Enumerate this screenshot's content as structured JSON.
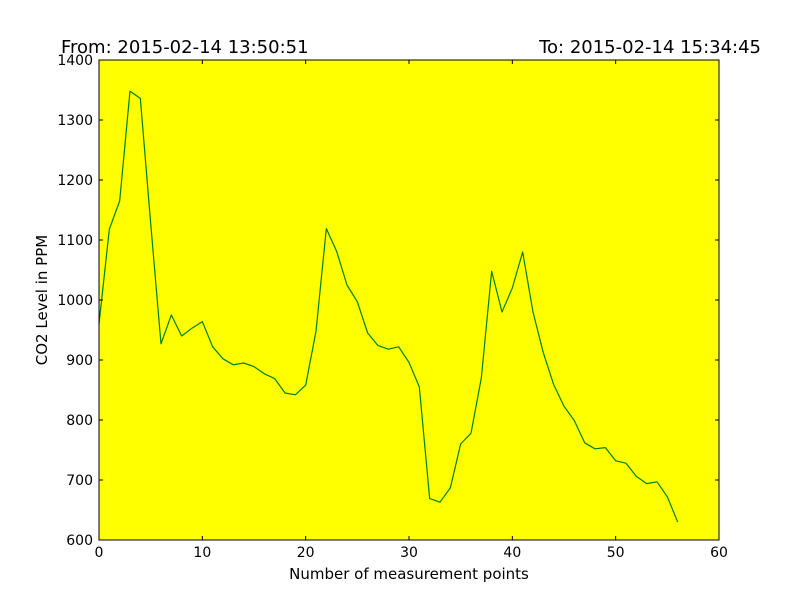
{
  "header": {
    "from_text": "From: 2015-02-14 13:50:51",
    "to_text": "To: 2015-02-14 15:34:45"
  },
  "colors": {
    "plot_background": "#ffff00",
    "line": "#008000"
  },
  "chart_data": {
    "type": "line",
    "title": "",
    "xlabel": "Number of measurement points",
    "ylabel": "CO2 Level in PPM",
    "xlim": [
      0,
      60
    ],
    "ylim": [
      600,
      1400
    ],
    "xticks": [
      0,
      10,
      20,
      30,
      40,
      50,
      60
    ],
    "yticks": [
      600,
      700,
      800,
      900,
      1000,
      1100,
      1200,
      1300,
      1400
    ],
    "grid": false,
    "x": [
      0,
      1,
      2,
      3,
      4,
      5,
      6,
      7,
      8,
      9,
      10,
      11,
      12,
      13,
      14,
      15,
      16,
      17,
      18,
      19,
      20,
      21,
      22,
      23,
      24,
      25,
      26,
      27,
      28,
      29,
      30,
      31,
      32,
      33,
      34,
      35,
      36,
      37,
      38,
      39,
      40,
      41,
      42,
      43,
      44,
      45,
      46,
      47,
      48,
      49,
      50,
      51,
      52,
      53,
      54,
      55,
      56
    ],
    "series": [
      {
        "values": [
          960,
          1118,
          1165,
          1348,
          1336,
          1128,
          927,
          975,
          940,
          953,
          964,
          922,
          902,
          892,
          895,
          889,
          877,
          869,
          845,
          842,
          858,
          948,
          1119,
          1081,
          1025,
          997,
          945,
          924,
          918,
          922,
          896,
          855,
          669,
          663,
          687,
          760,
          778,
          870,
          1048,
          980,
          1020,
          1080,
          980,
          912,
          859,
          823,
          799,
          762,
          752,
          754,
          732,
          728,
          706,
          694,
          697,
          672,
          630
        ]
      }
    ]
  }
}
